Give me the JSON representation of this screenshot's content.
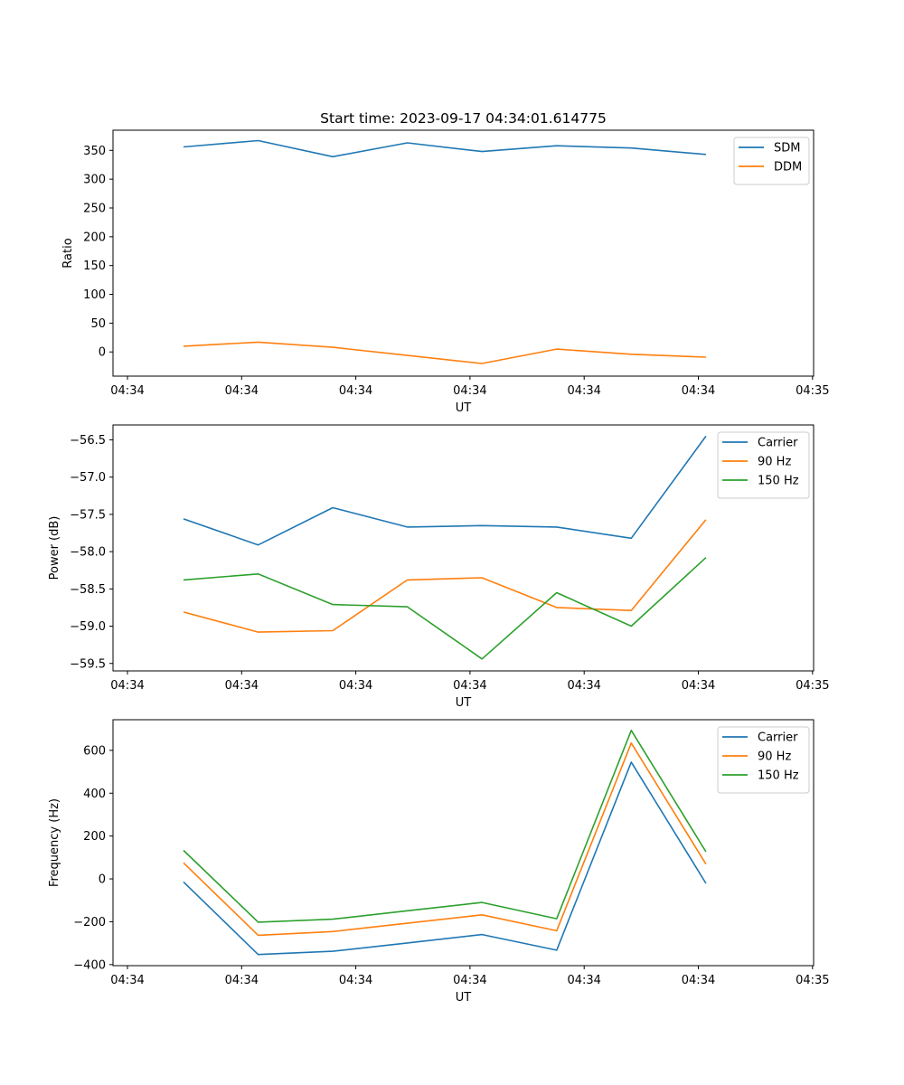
{
  "chart_data": [
    {
      "type": "line",
      "title": "Start time: 2023-09-17 04:34:01.614775",
      "xlabel": "UT",
      "ylabel": "Ratio",
      "x_tick_labels": [
        "04:34",
        "04:34",
        "04:34",
        "04:34",
        "04:34",
        "04:34",
        "04:35"
      ],
      "ylim": [
        -42,
        385
      ],
      "y_ticks": [
        0,
        50,
        100,
        150,
        200,
        250,
        300,
        350
      ],
      "y_tick_labels": [
        "0",
        "50",
        "100",
        "150",
        "200",
        "250",
        "300",
        "350"
      ],
      "x_index": [
        0,
        1,
        2,
        3,
        4,
        5,
        6,
        7
      ],
      "legend": "top-right",
      "grid": false,
      "series": [
        {
          "name": "SDM",
          "color": "#1f77b4",
          "values": [
            356,
            367,
            339,
            363,
            348,
            358,
            354,
            343
          ]
        },
        {
          "name": "DDM",
          "color": "#ff7f0e",
          "values": [
            10,
            17,
            8,
            -6,
            -20,
            5,
            -4,
            -9
          ]
        }
      ]
    },
    {
      "type": "line",
      "title": "",
      "xlabel": "UT",
      "ylabel": "Power (dB)",
      "x_tick_labels": [
        "04:34",
        "04:34",
        "04:34",
        "04:34",
        "04:34",
        "04:34",
        "04:35"
      ],
      "ylim": [
        -59.6,
        -56.3
      ],
      "y_ticks": [
        -59.5,
        -59.0,
        -58.5,
        -58.0,
        -57.5,
        -57.0,
        -56.5
      ],
      "y_tick_labels": [
        "−59.5",
        "−59.0",
        "−58.5",
        "−58.0",
        "−57.5",
        "−57.0",
        "−56.5"
      ],
      "x_index": [
        0,
        1,
        2,
        3,
        4,
        5,
        6,
        7
      ],
      "legend": "top-right",
      "grid": false,
      "series": [
        {
          "name": "Carrier",
          "color": "#1f77b4",
          "values": [
            -57.56,
            -57.91,
            -57.41,
            -57.67,
            -57.65,
            -57.67,
            -57.82,
            -56.45
          ]
        },
        {
          "name": "90 Hz",
          "color": "#ff7f0e",
          "values": [
            -58.81,
            -59.08,
            -59.06,
            -58.38,
            -58.35,
            -58.75,
            -58.79,
            -57.57
          ]
        },
        {
          "name": "150 Hz",
          "color": "#2ca02c",
          "values": [
            -58.38,
            -58.3,
            -58.71,
            -58.74,
            -59.44,
            -58.55,
            -59.0,
            -58.08
          ]
        }
      ]
    },
    {
      "type": "line",
      "title": "",
      "xlabel": "UT",
      "ylabel": "Frequency (Hz)",
      "x_tick_labels": [
        "04:34",
        "04:34",
        "04:34",
        "04:34",
        "04:34",
        "04:34",
        "04:35"
      ],
      "ylim": [
        -405,
        743
      ],
      "y_ticks": [
        -400,
        -200,
        0,
        200,
        400,
        600
      ],
      "y_tick_labels": [
        "−400",
        "−200",
        "0",
        "200",
        "400",
        "600"
      ],
      "x_index": [
        0,
        1,
        2,
        3,
        4,
        5,
        6,
        7
      ],
      "legend": "top-right",
      "grid": false,
      "series": [
        {
          "name": "Carrier",
          "color": "#1f77b4",
          "values": [
            -14,
            -353,
            -338,
            -299,
            -260,
            -333,
            545,
            -21
          ]
        },
        {
          "name": "90 Hz",
          "color": "#ff7f0e",
          "values": [
            75,
            -263,
            -246,
            -207,
            -168,
            -242,
            634,
            69
          ]
        },
        {
          "name": "150 Hz",
          "color": "#2ca02c",
          "values": [
            133,
            -202,
            -188,
            -149,
            -110,
            -186,
            693,
            127
          ]
        }
      ]
    }
  ]
}
